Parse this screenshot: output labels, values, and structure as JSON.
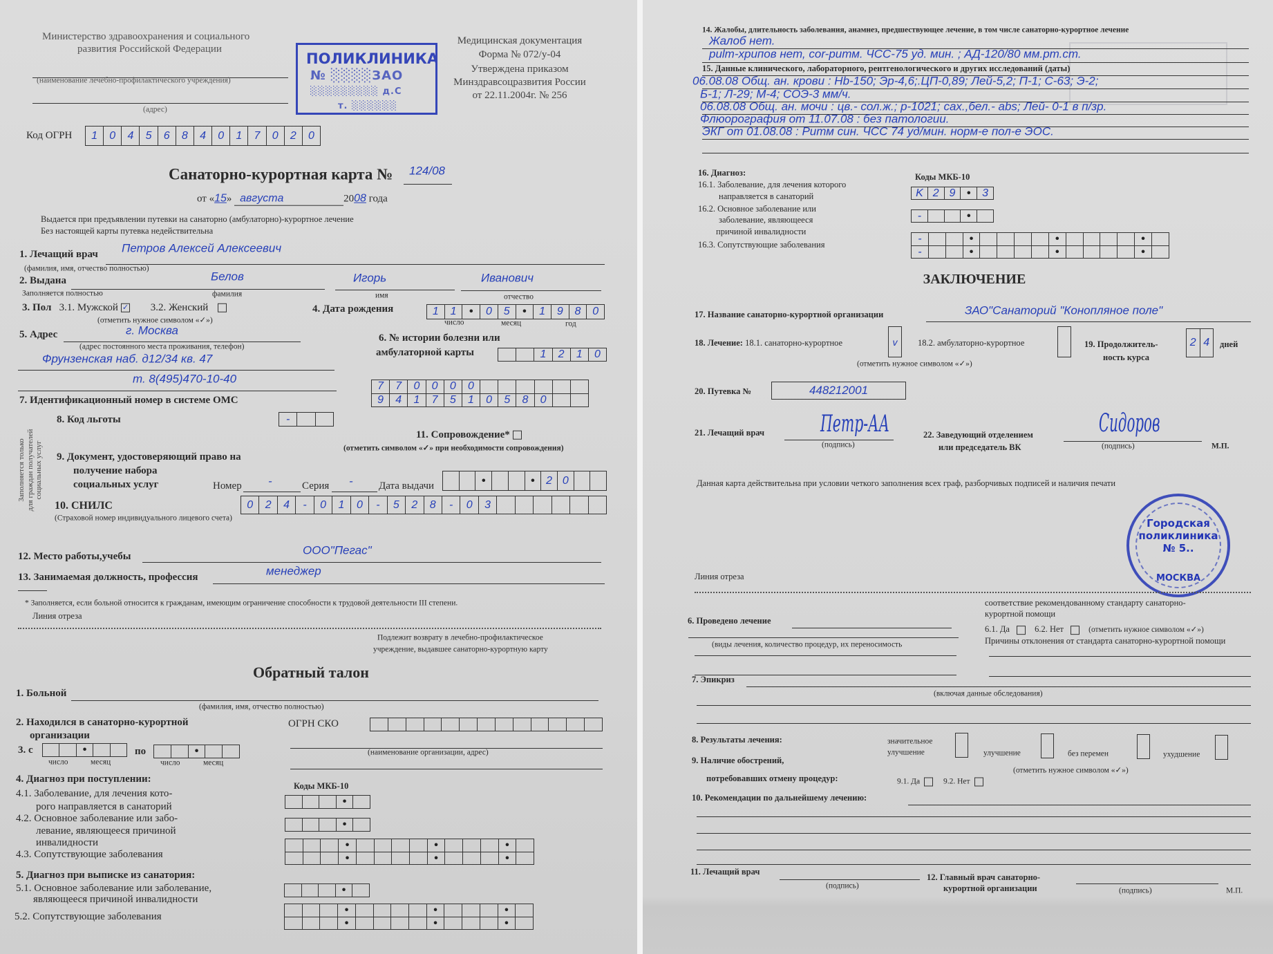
{
  "left": {
    "ministry": [
      "Министерство здравоохранения и социального",
      "развития Российской Федерации"
    ],
    "institution_caption": "(наименование лечебно-профилактического учреждения)",
    "address_caption": "(адрес)",
    "stamp_text": "ПОЛИКЛИНИКА",
    "form_header": [
      "Медицинская документация",
      "Форма № 072/у-04",
      "Утверждена приказом",
      "Минздравсоцразвития России",
      "от 22.11.2004г. № 256"
    ],
    "ogrn": {
      "label": "Код ОГРН",
      "digits": [
        "1",
        "0",
        "4",
        "5",
        "6",
        "8",
        "4",
        "0",
        "1",
        "7",
        "0",
        "2",
        "0"
      ]
    },
    "title": "Санаторно-курортная карта  №",
    "card_number": "124/08",
    "date": {
      "prefix": "от «",
      "day": "15",
      "mid": "»",
      "month": "августа",
      "year_prefix": "20",
      "year_suffix": "08",
      "suffix": "года"
    },
    "note1": "Выдается при предъявлении путевки на санаторно (амбулаторно)-курортное лечение",
    "note2": "Без настоящей карты путевка недействительна",
    "f1": {
      "label": "1. Лечащий врач",
      "value": "Петров   Алексей   Алексеевич",
      "caption": "(фамилия, имя, отчество полностью)"
    },
    "f2": {
      "label": "2. Выдана",
      "surname": "Белов",
      "name": "Игорь",
      "patronymic": "Иванович",
      "caption_full": "Заполняется полностью",
      "cap_surname": "фамилия",
      "cap_name": "имя",
      "cap_patronymic": "отчество"
    },
    "f3": {
      "label": "3. Пол",
      "male": "3.1. Мужской",
      "male_checked": true,
      "female": "3.2. Женский",
      "female_checked": false,
      "hint": "(отметить нужное символом «✓»)"
    },
    "f4": {
      "label": "4. Дата рождения",
      "cells": [
        "1",
        "1",
        "•",
        "0",
        "5",
        "•",
        "1",
        "9",
        "8",
        "0"
      ],
      "cap_day": "число",
      "cap_month": "месяц",
      "cap_year": "год"
    },
    "f5": {
      "label": "5. Адрес",
      "city": "г. Москва",
      "caption": "(адрес постоянного места проживания, телефон)",
      "street": "Фрунзенская наб.  д12/34   кв. 47",
      "phone": "т. 8(495)470-10-40"
    },
    "f6": {
      "label1": "6. № истории болезни или",
      "label2": "амбулаторной карты",
      "cells": [
        "",
        "",
        "1",
        "2",
        "1",
        "0"
      ]
    },
    "f7": {
      "label": "7. Идентификационный номер в системе ОМС",
      "rows": [
        [
          "7",
          "7",
          "0",
          "0",
          "0",
          "0",
          "",
          "",
          "",
          "",
          "",
          ""
        ],
        [
          "9",
          "4",
          "1",
          "7",
          "5",
          "1",
          "0",
          "5",
          "8",
          "0",
          "",
          ""
        ]
      ]
    },
    "side_note": [
      "Заполняется только",
      "для граждан получателей",
      "социальных услуг"
    ],
    "f8": {
      "label": "8. Код льготы",
      "cells": [
        "-",
        "",
        ""
      ]
    },
    "f11": {
      "label": "11. Сопровождение*",
      "checked": false,
      "hint": "(отметить символом «✓» при необходимости сопровождения)"
    },
    "f9": {
      "label": [
        "9. Документ, удостоверяющий право на",
        "получение набора",
        "социальных услуг"
      ],
      "number_label": "Номер",
      "number": "-",
      "series_label": "Серия",
      "series": "-",
      "issue_label": "Дата выдачи",
      "issue_cells": [
        "",
        "",
        "•",
        "",
        "",
        "•",
        "2",
        "0",
        "",
        ""
      ]
    },
    "f10": {
      "label": "10. СНИЛС",
      "caption": "(Страховой номер индивидуального лицевого счета)",
      "cells": [
        "0",
        "2",
        "4",
        "-",
        "0",
        "1",
        "0",
        "-",
        "5",
        "2",
        "8",
        "-",
        "0",
        "3",
        "",
        "",
        "",
        "",
        "",
        ""
      ]
    },
    "f12": {
      "label": "12. Место работы,учебы",
      "value": "ООО\"Пегас\""
    },
    "f13": {
      "label": "13. Занимаемая должность, профессия",
      "value": "менеджер"
    },
    "footnote": "* Заполняется, если больной относится к гражданам, имеющим ограничение способности к трудовой деятельности III степени.",
    "cut_line": "Линия  отреза",
    "return_note": [
      "Подлежит  возврату в лечебно-профилактическое",
      "учреждение, выдавшее санаторно-курортную карту"
    ],
    "coupon": {
      "title": "Обратный талон",
      "r1": {
        "label": "1. Больной",
        "caption": "(фамилия, имя, отчество полностью)"
      },
      "r2": {
        "label": [
          "2. Находился в санаторно-курортной",
          "организации"
        ],
        "ogrn_label": "ОГРН СКО",
        "ogrn_cells": [
          "",
          "",
          "",
          "",
          "",
          "",
          "",
          "",
          "",
          "",
          "",
          "",
          ""
        ],
        "caption": "(наименование организации, адрес)"
      },
      "r3": {
        "label": "3. с",
        "to": "по",
        "from_cells": [
          "",
          "",
          "•",
          "",
          ""
        ],
        "to_cells": [
          "",
          "",
          "•",
          "",
          ""
        ],
        "cap_day": "число",
        "cap_month": "месяц"
      },
      "r4": {
        "label": "4. Диагноз при поступлении:",
        "codes_label": "Коды МКБ-10",
        "l41": [
          "4.1. Заболевание, для лечения кото-",
          "рого направляется в санаторий"
        ],
        "l42": [
          "4.2. Основное заболевание или забо-",
          "левание, являющееся причиной",
          "инвалидности"
        ],
        "l43": "4.3. Сопутствующие заболевания"
      },
      "r5": {
        "label": "5.    Диагноз при выписке из санатория:",
        "l51": [
          "5.1. Основное заболевание или заболевание,",
          "являющееся причиной инвалидности"
        ],
        "l52": "5.2.  Сопутствующие заболевания"
      }
    }
  },
  "right": {
    "f14": {
      "label": "14. Жалобы, длительность заболевания, анамнез, предшествующее лечение, в том числе санаторно-курортное лечение",
      "lines": [
        "Жалоб нет.",
        "рulm-хрипов нет,  cor-ритм. ЧСС-75 уд. мин. ;  АД-120/80 мм.рт.ст."
      ]
    },
    "f15": {
      "label": "15. Данные клинического, лабораторного, рентгенологического и других исследований (даты)",
      "lines": [
        "06.08.08 Общ. ан. крови : Hb-150; Эр-4,6;.ЦП-0,89; Лей-5,2; П-1; С-63; Э-2;",
        "Б-1; Л-29; М-4; СОЭ-3 мм/ч.",
        "06.08.08 Общ. ан. мочи : цв.- сол.ж.; р-1021; сах.,бел.- abs; Лей- 0-1 в п/зр.",
        "Флюорография от 11.07.08 : без патологии.",
        "ЭКГ от 01.08.08 : Ритм син. ЧСС 74 уд/мин. норм-е пол-е ЭОС."
      ]
    },
    "f16": {
      "label": "16. Диагноз:",
      "codes_label": "Коды МКБ-10",
      "l161": [
        "16.1. Заболевание, для лечения которого",
        "направляется в санаторий"
      ],
      "l162": [
        "16.2. Основное заболевание или",
        "заболевание, являющееся",
        "причиной инвалидности"
      ],
      "l163": "16.3. Сопутствующие заболевания",
      "cells161": [
        "K",
        "2",
        "9",
        "•",
        "3"
      ],
      "cells162": [
        "-",
        "",
        "",
        "•",
        ""
      ]
    },
    "conclusion": "ЗАКЛЮЧЕНИЕ",
    "f17": {
      "label": "17. Название санаторно-курортной организации",
      "value": "ЗАО\"Санаторий \"Конопляное поле\""
    },
    "f18": {
      "label": "18. Лечение:",
      "opt1": "18.1. санаторно-курортное",
      "opt1_mark": "v",
      "opt2": "18.2. амбулаторно-курортное",
      "hint": "(отметить нужное символом «✓»)"
    },
    "f19": {
      "label1": "19. Продолжитель-",
      "label2": "ность курса",
      "cells": [
        "2",
        "4"
      ],
      "unit": "дней"
    },
    "f20": {
      "label": "20. Путевка №",
      "value": "448212001"
    },
    "f21": {
      "label": "21. Лечащий врач",
      "signature": "Петр-АА",
      "caption": "(подпись)"
    },
    "f22": {
      "label1": "22. Заведующий отделением",
      "label2": "или председатель ВК",
      "caption": "(подпись)",
      "seal_mark": "М.П.",
      "signature": "Сидоров"
    },
    "round_stamp": {
      "center_lines": [
        "Городская",
        "поликлиника",
        "№ 5.."
      ],
      "bottom": "МОСКВА"
    },
    "validity_note": "Данная карта действительна при условии четкого заполнения всех граф, разборчивых подписей и наличия печати",
    "cut_line": "Линия  отреза",
    "coupon": {
      "standard_note": [
        "соответствие рекомендованному стандарту санаторно-",
        "курортной помощи"
      ],
      "r6": {
        "label": "6. Проведено лечение",
        "caption": "(виды лечения, количество процедур, их переносимость",
        "yes": "6.1.  Да",
        "no": "6.2.  Нет",
        "hint": "(отметить нужное символом «✓»)",
        "deviation": "Причины отклонения от стандарта санаторно-курортной помощи"
      },
      "r7": {
        "label": "7. Эпикриз",
        "caption": "(включая данные обследования)"
      },
      "r8": {
        "label": "8. Результаты лечения:",
        "opt1": [
          "значительное",
          "улучшение"
        ],
        "opt2": "улучшение",
        "opt3": "без перемен",
        "opt4": "ухудшение",
        "hint": "(отметить нужное символом «✓»)"
      },
      "r9": {
        "label1": "9. Наличие обострений,",
        "label2": "потребовавших отмену процедур:",
        "yes": "9.1. Да",
        "no": "9.2. Нет"
      },
      "r10": {
        "label": "10. Рекомендации по дальнейшему лечению:"
      },
      "r11": {
        "label": "11. Лечащий врач",
        "caption": "(подпись)"
      },
      "r12": {
        "label1": "12. Главный врач санаторно-",
        "label2": "курортной организации",
        "caption": "(подпись)",
        "seal_mark": "М.П."
      }
    }
  },
  "colors": {
    "ink": "#2740b8",
    "stamp": "#2436b5",
    "paper": "#d8d8d8",
    "print": "#2b2b2b"
  }
}
